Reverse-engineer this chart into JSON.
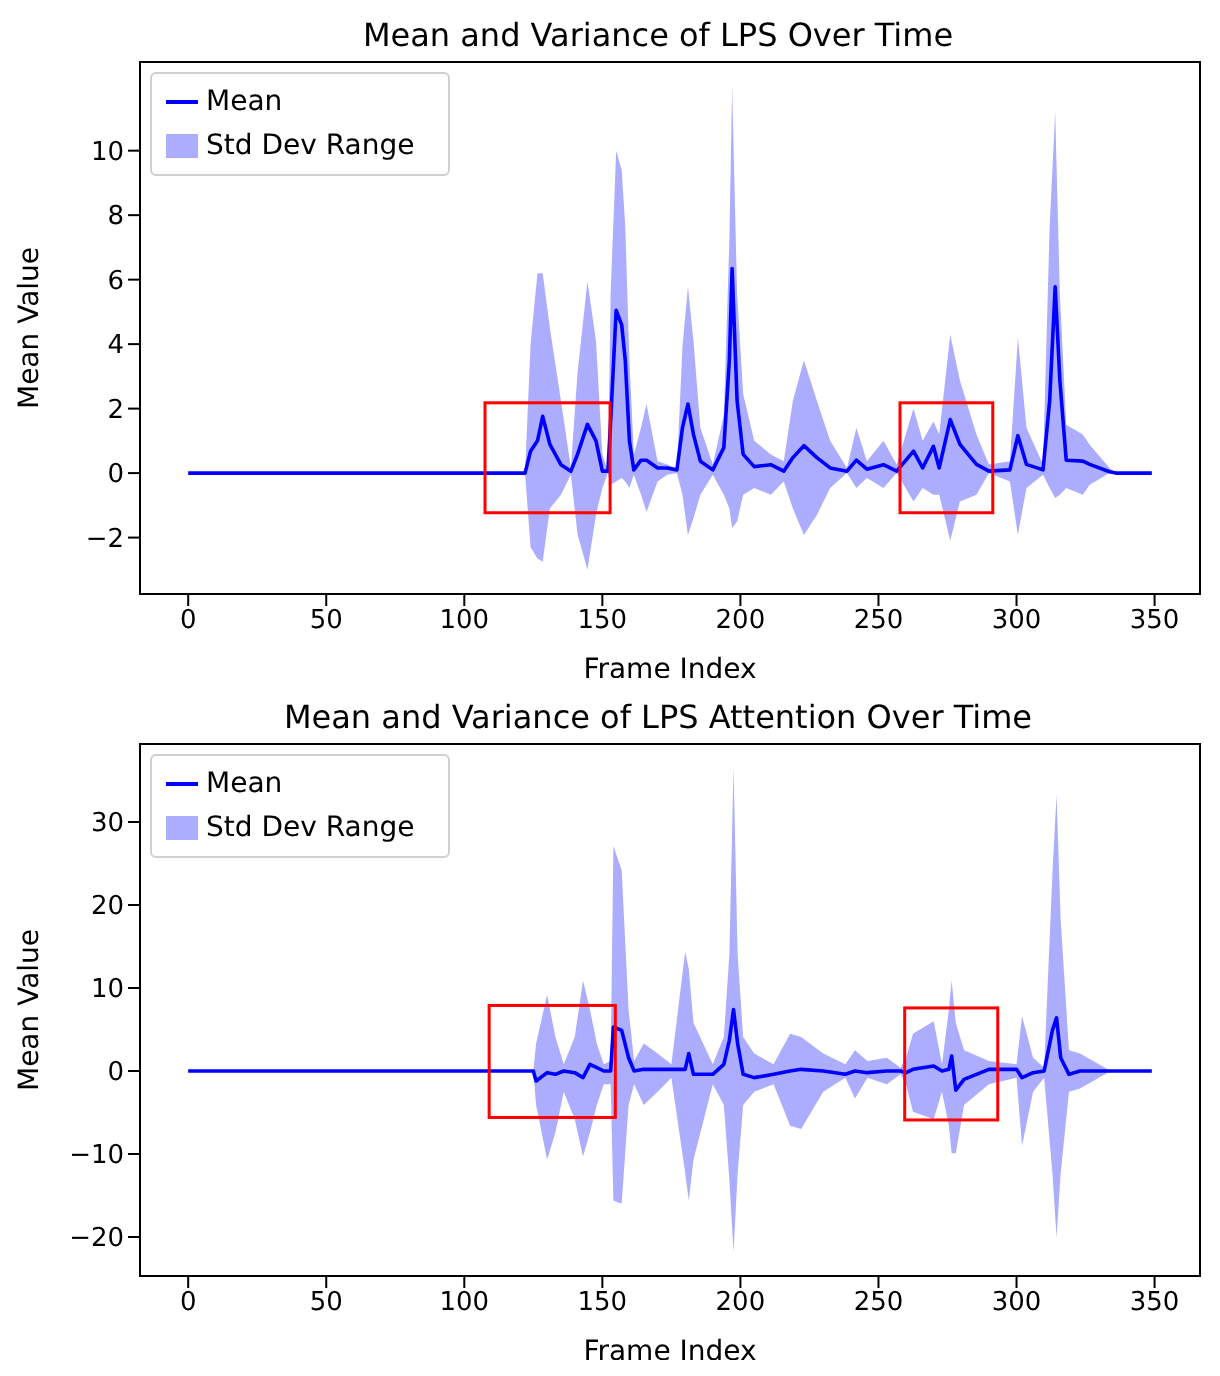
{
  "chart_data": [
    {
      "type": "line",
      "title": "Mean and Variance of LPS Over Time",
      "xlabel": "Frame Index",
      "ylabel": "Mean Value",
      "legend": "top left",
      "x": [
        0,
        122,
        124,
        126.5,
        128.4,
        131,
        135,
        138.6,
        141,
        144.6,
        147.7,
        150,
        152,
        153,
        155,
        157,
        158.3,
        159.8,
        161.4,
        164,
        166,
        170,
        173.5,
        177,
        179,
        181,
        183,
        185.5,
        190,
        194,
        196,
        197,
        198.8,
        201,
        205,
        211,
        215.7,
        219,
        223,
        227.7,
        232.5,
        238.6,
        242,
        245.8,
        251.8,
        256.6,
        262.7,
        266,
        269.9,
        272,
        276,
        279.5,
        285.5,
        290,
        297.6,
        300.5,
        303.6,
        309.6,
        312,
        314,
        315.7,
        318,
        324,
        326.5,
        333.7,
        336,
        349
      ],
      "series": [
        {
          "name": "Mean",
          "color": "#0000ff",
          "values": [
            0,
            0,
            0.68,
            1.0,
            1.76,
            0.89,
            0.26,
            0.06,
            0.58,
            1.51,
            1.0,
            0.06,
            0.06,
            1.6,
            5.05,
            4.6,
            3.5,
            1.0,
            0.1,
            0.4,
            0.4,
            0.16,
            0.16,
            0.1,
            1.4,
            2.14,
            1.2,
            0.37,
            0.1,
            0.79,
            3.5,
            6.34,
            2.24,
            0.58,
            0.2,
            0.26,
            0.06,
            0.48,
            0.85,
            0.48,
            0.16,
            0.06,
            0.4,
            0.12,
            0.26,
            0.06,
            0.68,
            0.16,
            0.83,
            0.16,
            1.66,
            0.89,
            0.27,
            0.06,
            0.1,
            1.16,
            0.27,
            0.1,
            2.24,
            5.78,
            2.87,
            0.4,
            0.37,
            0.27,
            0.04,
            0,
            0
          ]
        },
        {
          "name": "Std Dev Range",
          "type": "area",
          "color": "#adadff",
          "values": [
            null,
            null,
            null,
            null,
            null,
            null,
            null,
            null,
            null,
            null,
            null,
            null,
            null,
            null,
            null,
            null,
            null,
            null,
            null,
            null,
            null,
            null,
            null,
            null,
            null,
            null,
            null,
            null,
            null,
            null,
            null,
            null,
            null,
            null,
            null,
            null,
            null,
            null,
            null,
            null,
            null,
            null,
            null,
            null,
            null,
            null,
            null,
            null,
            null,
            null,
            null,
            null,
            null,
            null,
            null,
            null,
            null,
            null,
            null,
            null,
            null,
            null,
            null,
            null,
            null,
            null,
            null
          ],
          "lower": [
            0,
            0,
            -2.3,
            -2.65,
            -2.75,
            -1.1,
            -0.67,
            -0.05,
            -1.9,
            -3.0,
            -1.3,
            -0.46,
            0,
            -0.36,
            -0.26,
            -0.15,
            -0.26,
            -0.46,
            -0.05,
            -0.67,
            -1.2,
            -0.26,
            -0.05,
            0,
            -0.67,
            -1.92,
            -1.4,
            -0.67,
            -0.05,
            -0.67,
            -1.1,
            -1.7,
            -1.5,
            -0.67,
            -0.46,
            -0.67,
            -0.26,
            -1.1,
            -1.92,
            -1.3,
            -0.46,
            0,
            -0.46,
            -0.15,
            -0.46,
            0,
            -0.88,
            -0.46,
            -0.67,
            -0.67,
            -2.1,
            -0.88,
            -0.67,
            0,
            -0.26,
            -1.92,
            -0.46,
            -0.05,
            -0.46,
            -0.77,
            -0.67,
            -0.46,
            -0.67,
            -0.36,
            0,
            0,
            0
          ],
          "upper": [
            0,
            0,
            4.0,
            6.2,
            6.2,
            4.5,
            2.24,
            0.16,
            3.1,
            5.95,
            4.1,
            0.58,
            0.06,
            5.57,
            10.0,
            9.4,
            7.65,
            3.5,
            0.58,
            1.41,
            2.14,
            0.37,
            0.27,
            0.12,
            3.9,
            5.78,
            4.1,
            1.41,
            0.27,
            1.8,
            7.2,
            12.0,
            5.57,
            2.45,
            1.0,
            0.58,
            0.37,
            2.24,
            3.5,
            2.24,
            1.0,
            0.16,
            1.41,
            0.37,
            1.0,
            0.27,
            2.0,
            1.0,
            1.6,
            1.2,
            4.3,
            2.87,
            1.2,
            0.27,
            0.37,
            4.2,
            1.41,
            0.27,
            7.65,
            11.2,
            5.57,
            1.5,
            1.2,
            0.88,
            0.16,
            0,
            0
          ]
        }
      ],
      "xlim": [
        -17.45,
        366.45
      ],
      "xticks": [
        0,
        50,
        100,
        150,
        200,
        250,
        300,
        350
      ],
      "ylim": [
        -3.75,
        12.75
      ],
      "yticks": [
        -2,
        0,
        2,
        4,
        6,
        8,
        10
      ]
    },
    {
      "type": "line",
      "title": "Mean and Variance of LPS Attention Over Time",
      "xlabel": "Frame Index",
      "ylabel": "Mean Value",
      "legend": "top left",
      "x": [
        0,
        125,
        126,
        130,
        133,
        136,
        140,
        143,
        145.5,
        148,
        150.5,
        153,
        154,
        157,
        159.5,
        161.5,
        165,
        170,
        175,
        180,
        181.3,
        183,
        190,
        194,
        196,
        197.5,
        199,
        201,
        205,
        212,
        218,
        222,
        230,
        238,
        241.5,
        246,
        253,
        258,
        260,
        262.5,
        270,
        273,
        275.5,
        276.5,
        278,
        281,
        290,
        300,
        302,
        306,
        310,
        313,
        314.5,
        316,
        319,
        323,
        333,
        336,
        349
      ],
      "series": [
        {
          "name": "Mean",
          "color": "#0000ff",
          "values": [
            0,
            0,
            -1.2,
            -0.2,
            -0.4,
            0,
            -0.2,
            -0.8,
            0.8,
            0.4,
            0,
            0,
            5.3,
            4.9,
            1.6,
            0,
            0.2,
            0.2,
            0.2,
            0.2,
            2.1,
            -0.4,
            -0.4,
            0.8,
            3.7,
            7.4,
            3.3,
            -0.4,
            -0.8,
            -0.4,
            0,
            0.2,
            0,
            -0.4,
            0,
            -0.2,
            0,
            0,
            -0.2,
            0.2,
            0.6,
            0,
            0.2,
            1.8,
            -2.3,
            -1.0,
            0.2,
            0.2,
            -0.8,
            -0.2,
            0,
            4.9,
            6.4,
            1.6,
            -0.4,
            0,
            0,
            0,
            0
          ]
        },
        {
          "name": "Std Dev Range",
          "type": "area",
          "color": "#adadff",
          "values": [
            null,
            null,
            null,
            null,
            null,
            null,
            null,
            null,
            null,
            null,
            null,
            null,
            null,
            null,
            null,
            null,
            null,
            null,
            null,
            null,
            null,
            null,
            null,
            null,
            null,
            null,
            null,
            null,
            null,
            null,
            null,
            null,
            null,
            null,
            null,
            null,
            null,
            null,
            null,
            null,
            null,
            null,
            null,
            null,
            null,
            null,
            null,
            null,
            null,
            null,
            null,
            null,
            null,
            null,
            null,
            null,
            null,
            null,
            null
          ],
          "lower": [
            0,
            0,
            -4.1,
            -10.7,
            -7.4,
            -2.5,
            -5.8,
            -10.3,
            -7.4,
            -4.1,
            -1.6,
            -1.6,
            -15.6,
            -16.0,
            -4.1,
            -1.6,
            -4.1,
            -2.5,
            -0.8,
            -12.3,
            -15.6,
            -10.7,
            -1.6,
            -4.1,
            -13.1,
            -21.8,
            -12.3,
            -4.1,
            -2.5,
            -1.6,
            -6.6,
            -7.0,
            -2.5,
            -0.8,
            -3.3,
            -0.8,
            -1.6,
            -0.4,
            -1.6,
            -4.9,
            -5.8,
            -2.5,
            -6.6,
            -9.9,
            -9.9,
            -4.1,
            -1.6,
            -0.8,
            -9.0,
            -2.5,
            -0.8,
            -12.3,
            -20.1,
            -12.3,
            -2.5,
            -2.1,
            -0.2,
            0,
            0
          ],
          "upper": [
            0,
            0,
            3.3,
            9.2,
            4.1,
            0.8,
            4.1,
            10.9,
            7.4,
            3.3,
            0.8,
            1.2,
            27.1,
            24.2,
            7.4,
            1.2,
            3.3,
            2.1,
            0.8,
            14.4,
            12.3,
            5.8,
            0.8,
            4.1,
            14.0,
            36.6,
            14.0,
            4.1,
            2.1,
            0.8,
            4.5,
            4.1,
            2.1,
            0.8,
            2.5,
            1.2,
            1.6,
            0.4,
            1.6,
            4.5,
            6.0,
            0.8,
            7.4,
            10.9,
            5.8,
            2.5,
            1.2,
            0.8,
            6.6,
            1.6,
            0.4,
            23.8,
            33.3,
            18.1,
            2.5,
            2.1,
            0.2,
            0,
            0
          ]
        }
      ],
      "xlim": [
        -17.45,
        366.45
      ],
      "xticks": [
        0,
        50,
        100,
        150,
        200,
        250,
        300,
        350
      ],
      "ylim": [
        -24.7,
        39.4
      ],
      "yticks": [
        -20,
        -10,
        0,
        10,
        20,
        30
      ]
    }
  ]
}
